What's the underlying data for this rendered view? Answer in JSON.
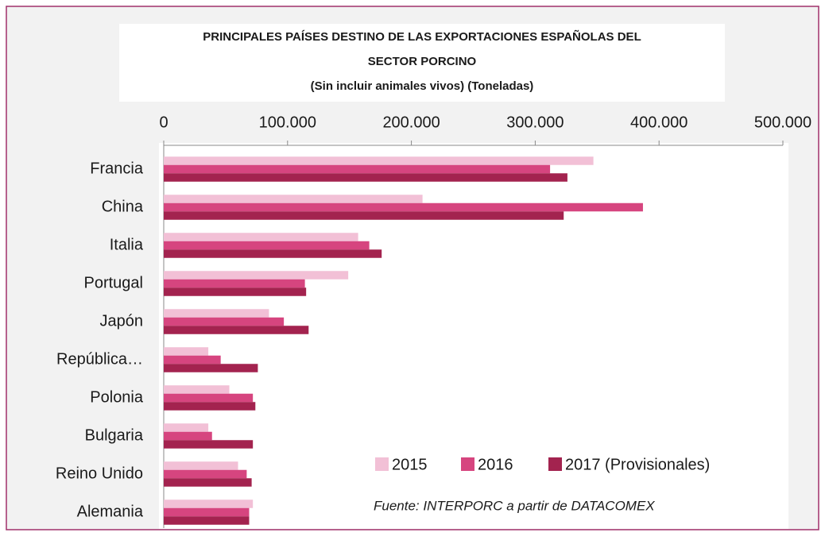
{
  "chart_data": {
    "type": "hbar",
    "title": [
      "PRINCIPALES PAÍSES DESTINO DE LAS EXPORTACIONES ESPAÑOLAS DEL",
      "SECTOR PORCINO"
    ],
    "subtitle": "(Sin incluir animales vivos) (Toneladas)",
    "categories": [
      "Francia",
      "China",
      "Italia",
      "Portugal",
      "Japón",
      "República…",
      "Polonia",
      "Bulgaria",
      "Reino Unido",
      "Alemania"
    ],
    "series": [
      {
        "name": "2015",
        "color": "#f2c0d6",
        "values": [
          347000,
          209000,
          157000,
          149000,
          85000,
          36000,
          53000,
          36000,
          60000,
          72000
        ]
      },
      {
        "name": "2016",
        "color": "#d6457f",
        "values": [
          312000,
          387000,
          166000,
          114000,
          97000,
          46000,
          72000,
          39000,
          67000,
          69000
        ]
      },
      {
        "name": "2017 (Provisionales)",
        "color": "#a3234f",
        "values": [
          326000,
          323000,
          176000,
          115000,
          117000,
          76000,
          74000,
          72000,
          71000,
          69000
        ]
      }
    ],
    "xlim": [
      0,
      500000
    ],
    "xticks": [
      0,
      {
        "value": 100000,
        "label": "100.000"
      },
      {
        "value": 200000,
        "label": "200.000"
      },
      {
        "value": 300000,
        "label": "300.000"
      },
      {
        "value": 400000,
        "label": "400.000"
      },
      {
        "value": 500000,
        "label": "500.000"
      }
    ],
    "annotation": "Fuente: INTERPORC  a partir de DATACOMEX"
  }
}
